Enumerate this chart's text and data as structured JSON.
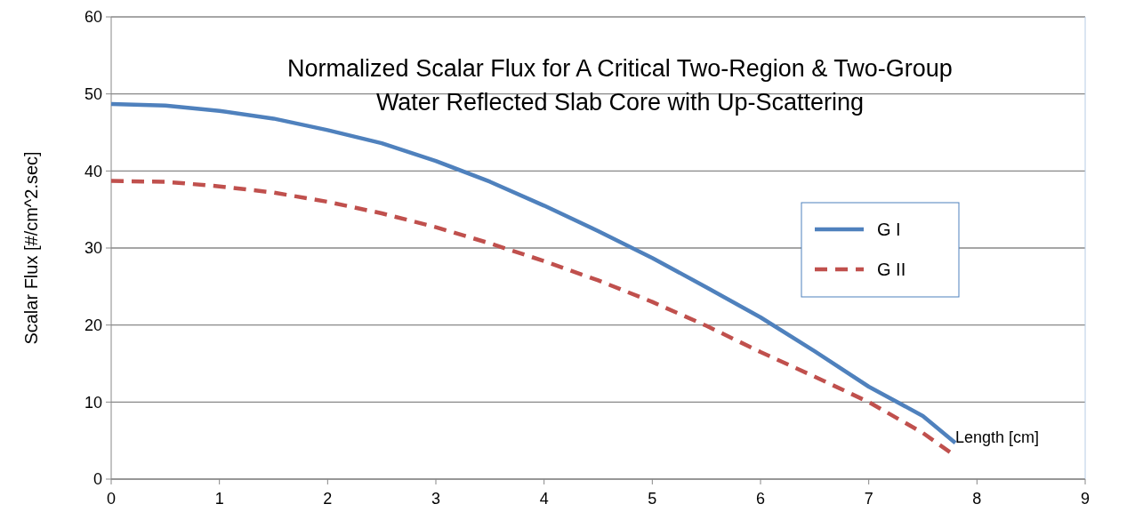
{
  "chart_data": {
    "type": "line",
    "title": "Normalized Scalar Flux for A Critical Two-Region & Two-Group\nWater Reflected Slab Core with Up-Scattering",
    "xlabel": "Length [cm]",
    "ylabel": "Scalar Flux [#/cm^2.sec]",
    "xlim": [
      0,
      9
    ],
    "xticks": [
      0,
      1,
      2,
      3,
      4,
      5,
      6,
      7,
      8,
      9
    ],
    "ylim": [
      0,
      60
    ],
    "yticks": [
      0,
      10,
      20,
      30,
      40,
      50,
      60
    ],
    "grid": "y",
    "legend": "right",
    "series": [
      {
        "name": "G I",
        "color": "#4f81bd",
        "line_style": "solid",
        "x": [
          0,
          0.5,
          1,
          1.5,
          2,
          2.5,
          3,
          3.5,
          4,
          4.5,
          5,
          5.5,
          6,
          6.5,
          7,
          7.5,
          7.8
        ],
        "values": [
          48.7,
          48.5,
          47.8,
          46.8,
          45.3,
          43.6,
          41.3,
          38.6,
          35.5,
          32.2,
          28.7,
          24.9,
          21,
          16.6,
          12,
          8.2,
          4.7
        ]
      },
      {
        "name": "G II",
        "color": "#c0504d",
        "line_style": "dashed",
        "x": [
          0,
          0.5,
          1,
          1.5,
          2,
          2.5,
          3,
          3.5,
          4,
          4.5,
          5,
          5.5,
          6,
          6.5,
          7,
          7.5,
          7.75
        ],
        "values": [
          38.7,
          38.6,
          38,
          37.2,
          36,
          34.5,
          32.7,
          30.6,
          28.3,
          25.8,
          23,
          19.9,
          16.5,
          13.3,
          10,
          6,
          3.5
        ]
      }
    ]
  }
}
